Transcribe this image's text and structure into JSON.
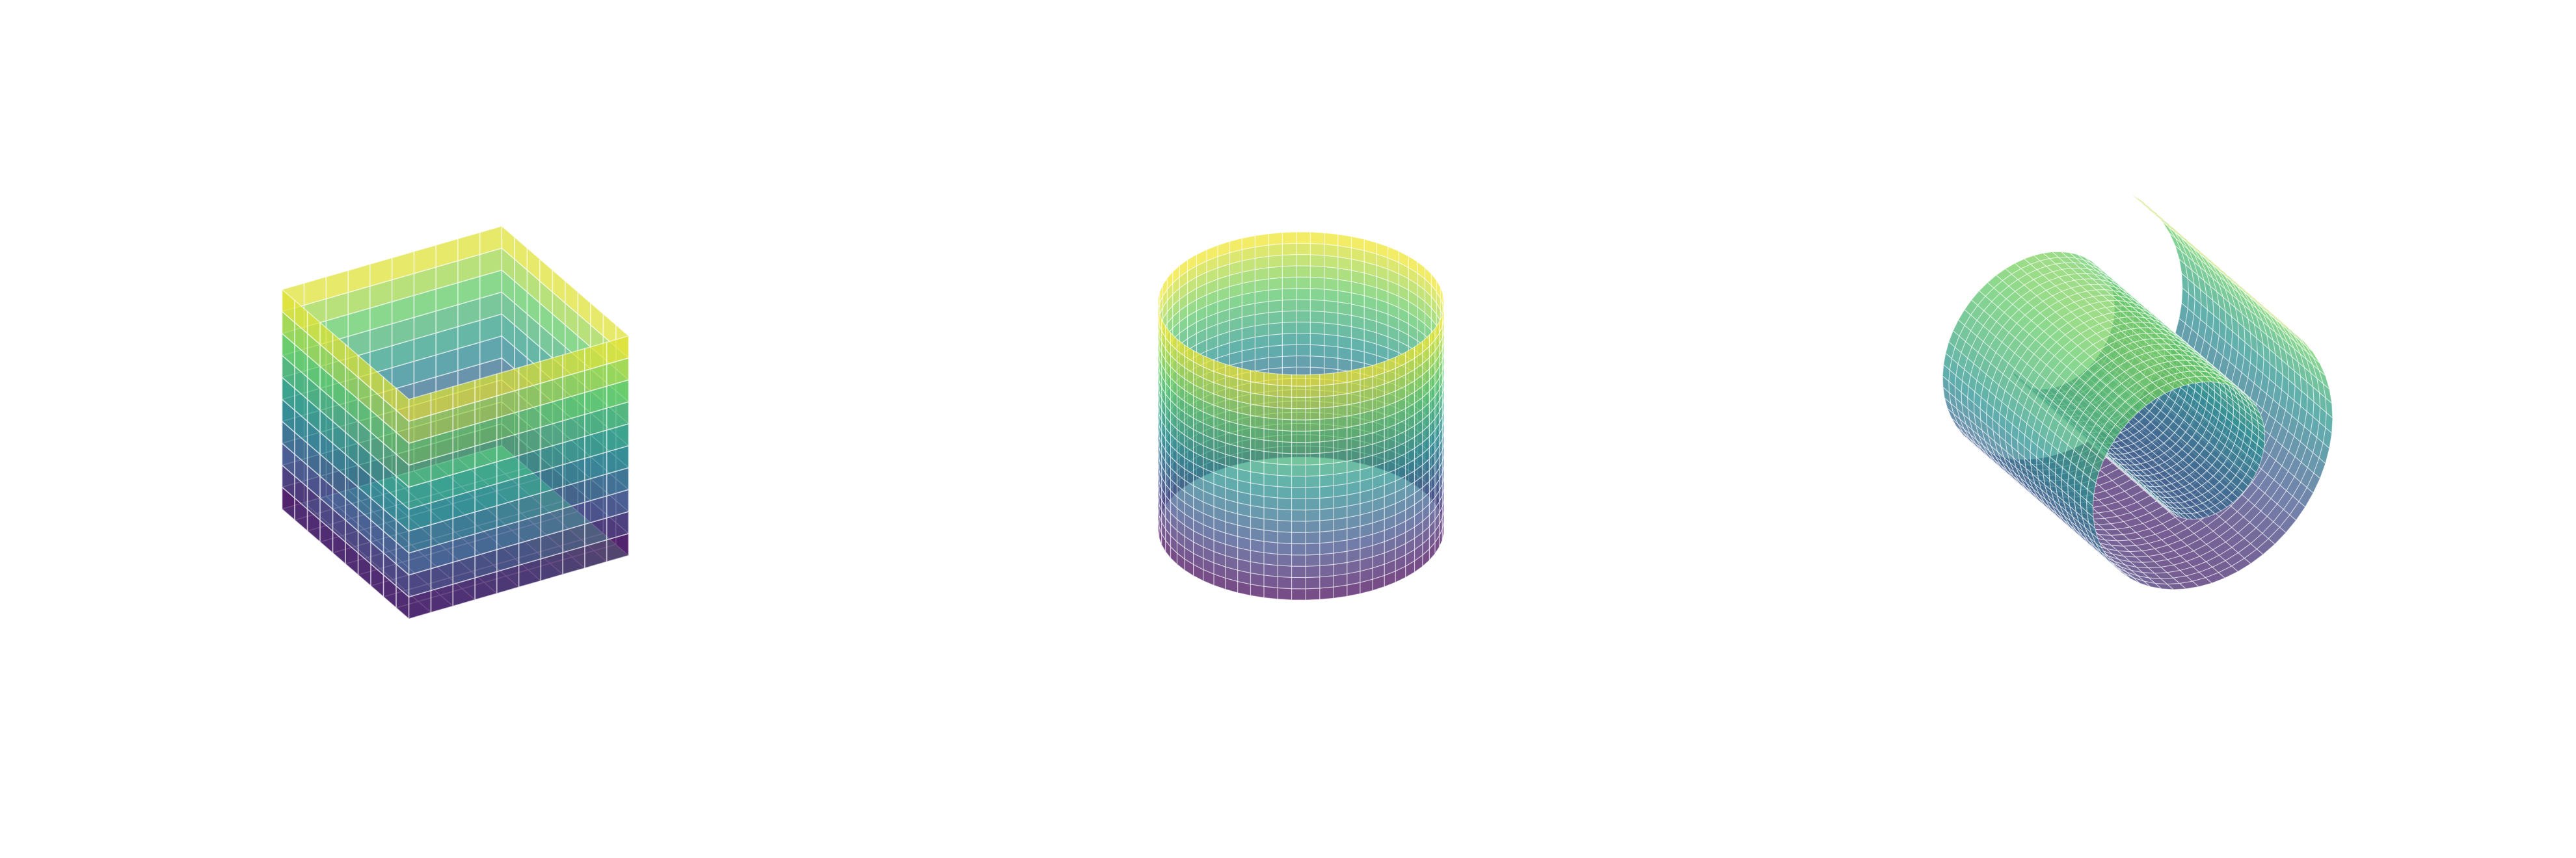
{
  "figure": {
    "background": "#ffffff",
    "colormap": "viridis",
    "colormap_stops": [
      "#440154",
      "#3b528b",
      "#21908d",
      "#5dc963",
      "#fde725"
    ],
    "mesh_line_color": "#ffffff",
    "surface_alpha": 0.72,
    "panels": [
      {
        "shape": "open-box",
        "grid": [
          10,
          10
        ]
      },
      {
        "shape": "cylinder",
        "grid": [
          64,
          20
        ]
      },
      {
        "shape": "spiral-scroll",
        "grid": [
          90,
          24
        ]
      }
    ]
  }
}
